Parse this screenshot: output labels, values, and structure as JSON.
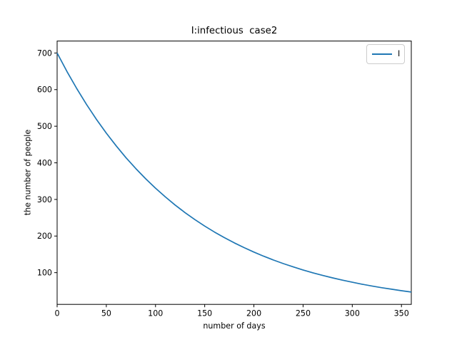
{
  "figure": {
    "background": "#ffffff",
    "frame_color": "#000000"
  },
  "chart_data": {
    "type": "line",
    "title": "I:infectious  case2",
    "xlabel": "number of days",
    "ylabel": "the number of people",
    "xlim": [
      0,
      360
    ],
    "ylim": [
      13.3,
      732.7
    ],
    "xticks": [
      0,
      50,
      100,
      150,
      200,
      250,
      300,
      350
    ],
    "yticks": [
      100,
      200,
      300,
      400,
      500,
      600,
      700
    ],
    "grid": false,
    "legend": {
      "position": "upper right",
      "entries": [
        {
          "label": "I",
          "color": "#1f77b4"
        }
      ]
    },
    "series": [
      {
        "name": "I",
        "color": "#1f77b4",
        "x": [
          0,
          10,
          20,
          30,
          40,
          50,
          60,
          70,
          80,
          90,
          100,
          110,
          120,
          130,
          140,
          150,
          160,
          170,
          180,
          190,
          200,
          210,
          220,
          230,
          240,
          250,
          260,
          270,
          280,
          290,
          300,
          310,
          320,
          330,
          340,
          350,
          360
        ],
        "y": [
          700.0,
          649.4,
          602.5,
          559.0,
          518.6,
          481.1,
          446.3,
          414.1,
          384.2,
          356.4,
          330.7,
          306.8,
          284.6,
          264.0,
          245.0,
          227.3,
          210.8,
          195.6,
          181.5,
          168.4,
          156.2,
          144.9,
          134.4,
          124.7,
          115.7,
          107.3,
          99.6,
          92.4,
          85.7,
          79.5,
          73.8,
          68.4,
          63.5,
          58.9,
          54.7,
          50.7,
          47.0
        ]
      }
    ]
  }
}
